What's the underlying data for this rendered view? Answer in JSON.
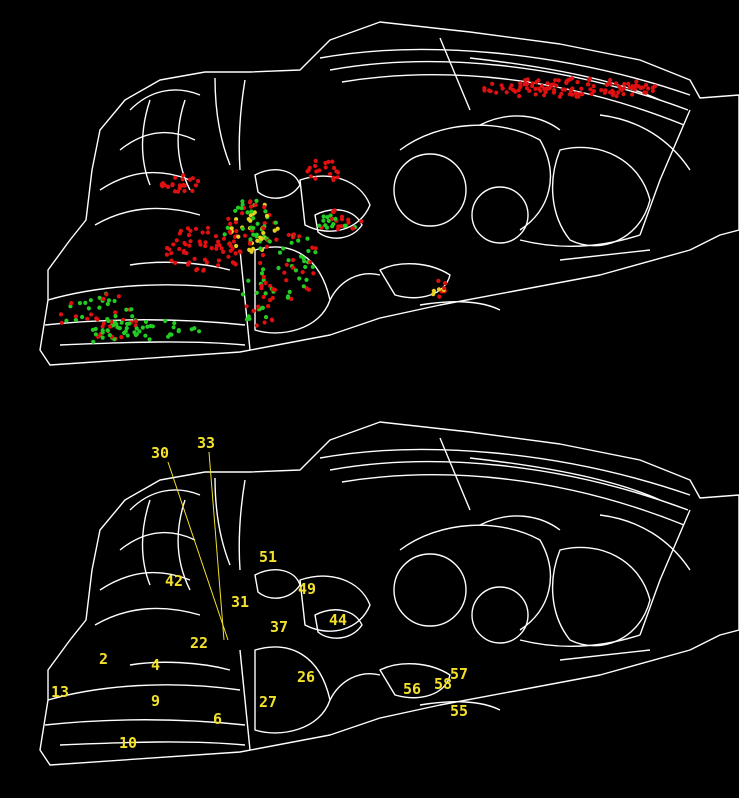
{
  "figure": {
    "background_color": "#000000",
    "outline_color": "#ffffff",
    "label_color": "#f2e02a",
    "marker_colors": {
      "red": "#e01010",
      "green": "#22cc22",
      "yellow": "#e8d020"
    }
  },
  "top_panel": {
    "label_count": 0
  },
  "bottom_panel": {
    "region_labels": [
      "30",
      "33",
      "42",
      "51",
      "49",
      "31",
      "37",
      "44",
      "22",
      "2",
      "4",
      "13",
      "9",
      "6",
      "10",
      "27",
      "26",
      "56",
      "58",
      "57",
      "55"
    ]
  }
}
